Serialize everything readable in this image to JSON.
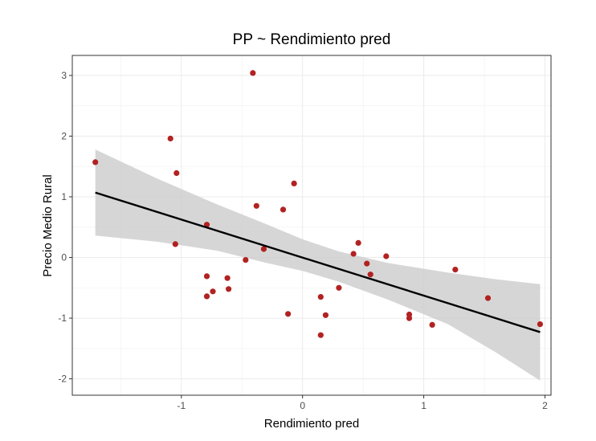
{
  "chart_data": {
    "type": "scatter",
    "title": "PP ~ Rendimiento pred",
    "xlabel": "Rendimiento pred",
    "ylabel": "Precio Medio Rural",
    "xlim": [
      -1.9,
      2.05
    ],
    "ylim": [
      -2.27,
      3.33
    ],
    "xticks": [
      -1,
      0,
      1,
      2
    ],
    "yticks": [
      -2,
      -1,
      0,
      1,
      2,
      3
    ],
    "xtick_labels": [
      "-1",
      "0",
      "1",
      "2"
    ],
    "ytick_labels": [
      "-2",
      "-1",
      "0",
      "1",
      "2",
      "3"
    ],
    "grid": true,
    "point_color": "#b22222",
    "line_color": "#000000",
    "band_color": "#cccccc",
    "points": [
      {
        "x": -1.71,
        "y": 1.57
      },
      {
        "x": -1.09,
        "y": 1.96
      },
      {
        "x": -1.04,
        "y": 1.39
      },
      {
        "x": -1.05,
        "y": 0.22
      },
      {
        "x": -0.79,
        "y": 0.54
      },
      {
        "x": -0.79,
        "y": -0.31
      },
      {
        "x": -0.79,
        "y": -0.64
      },
      {
        "x": -0.74,
        "y": -0.56
      },
      {
        "x": -0.62,
        "y": -0.34
      },
      {
        "x": -0.61,
        "y": -0.52
      },
      {
        "x": -0.41,
        "y": 3.04
      },
      {
        "x": -0.38,
        "y": 0.85
      },
      {
        "x": -0.32,
        "y": 0.14
      },
      {
        "x": -0.47,
        "y": -0.04
      },
      {
        "x": -0.16,
        "y": 0.79
      },
      {
        "x": -0.07,
        "y": 1.22
      },
      {
        "x": -0.12,
        "y": -0.93
      },
      {
        "x": 0.15,
        "y": -0.65
      },
      {
        "x": 0.15,
        "y": -1.28
      },
      {
        "x": 0.19,
        "y": -0.95
      },
      {
        "x": 0.3,
        "y": -0.5
      },
      {
        "x": 0.42,
        "y": 0.06
      },
      {
        "x": 0.46,
        "y": 0.24
      },
      {
        "x": 0.53,
        "y": -0.1
      },
      {
        "x": 0.56,
        "y": -0.28
      },
      {
        "x": 0.69,
        "y": 0.02
      },
      {
        "x": 0.88,
        "y": -0.94
      },
      {
        "x": 0.88,
        "y": -1.0
      },
      {
        "x": 1.07,
        "y": -1.11
      },
      {
        "x": 1.26,
        "y": -0.2
      },
      {
        "x": 1.53,
        "y": -0.67
      },
      {
        "x": 1.96,
        "y": -1.1
      }
    ],
    "fit_line": {
      "x": [
        -1.71,
        1.96
      ],
      "y": [
        1.07,
        -1.23
      ]
    },
    "confidence_band": {
      "x": [
        -1.71,
        -1.2,
        -0.7,
        -0.3,
        0.0,
        0.3,
        0.7,
        1.2,
        1.6,
        1.96
      ],
      "upper": [
        1.78,
        1.3,
        0.87,
        0.55,
        0.3,
        0.1,
        -0.09,
        -0.25,
        -0.36,
        -0.44
      ],
      "lower": [
        0.36,
        0.26,
        0.11,
        -0.09,
        -0.22,
        -0.4,
        -0.69,
        -1.1,
        -1.57,
        -2.03
      ]
    }
  }
}
